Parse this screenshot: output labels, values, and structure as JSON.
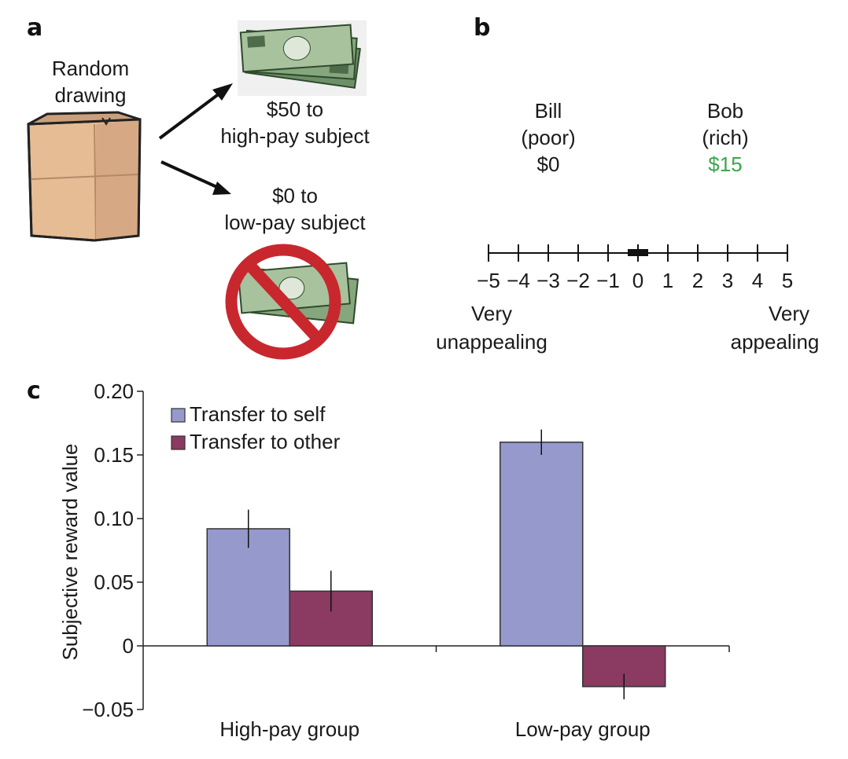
{
  "panel_a": {
    "letter": "a",
    "bag_label_line1": "Random",
    "bag_label_line2": "drawing",
    "high_line1": "$50 to",
    "high_line2": "high-pay subject",
    "low_line1": "$0 to",
    "low_line2": "low-pay subject",
    "money_icon": "cash-bills-icon",
    "bag_icon": "paper-bag-icon",
    "prohibited_icon": "prohibited-sign-icon"
  },
  "panel_b": {
    "letter": "b",
    "bill_name": "Bill",
    "bill_status": "(poor)",
    "bill_amount": "$0",
    "bob_name": "Bob",
    "bob_status": "(rich)",
    "bob_amount": "$15",
    "bob_amount_color": "#3aa64c",
    "scale_ticks": [
      "−5",
      "−4",
      "−3",
      "−2",
      "−1",
      "0",
      "1",
      "2",
      "3",
      "4",
      "5"
    ],
    "scale_marker_value": 0,
    "left_anchor_line1": "Very",
    "left_anchor_line2": "unappealing",
    "right_anchor_line1": "Very",
    "right_anchor_line2": "appealing"
  },
  "panel_c": {
    "letter": "c"
  },
  "chart_data": {
    "type": "bar",
    "categories": [
      "High-pay group",
      "Low-pay group"
    ],
    "series": [
      {
        "name": "Transfer to self",
        "values": [
          0.092,
          0.16
        ],
        "errors": [
          0.015,
          0.01
        ],
        "color": "#9699cb"
      },
      {
        "name": "Transfer to other",
        "values": [
          0.043,
          -0.032
        ],
        "errors": [
          0.016,
          0.01
        ],
        "color": "#8b3a62"
      }
    ],
    "ylabel": "Subjective reward value",
    "xlabel": "",
    "ylim": [
      -0.05,
      0.2
    ],
    "yticks": [
      -0.05,
      0,
      0.05,
      0.1,
      0.15,
      0.2
    ],
    "ytick_labels": [
      "−0.05",
      "0",
      "0.05",
      "0.10",
      "0.15",
      "0.20"
    ],
    "legend_position": "top-left"
  }
}
